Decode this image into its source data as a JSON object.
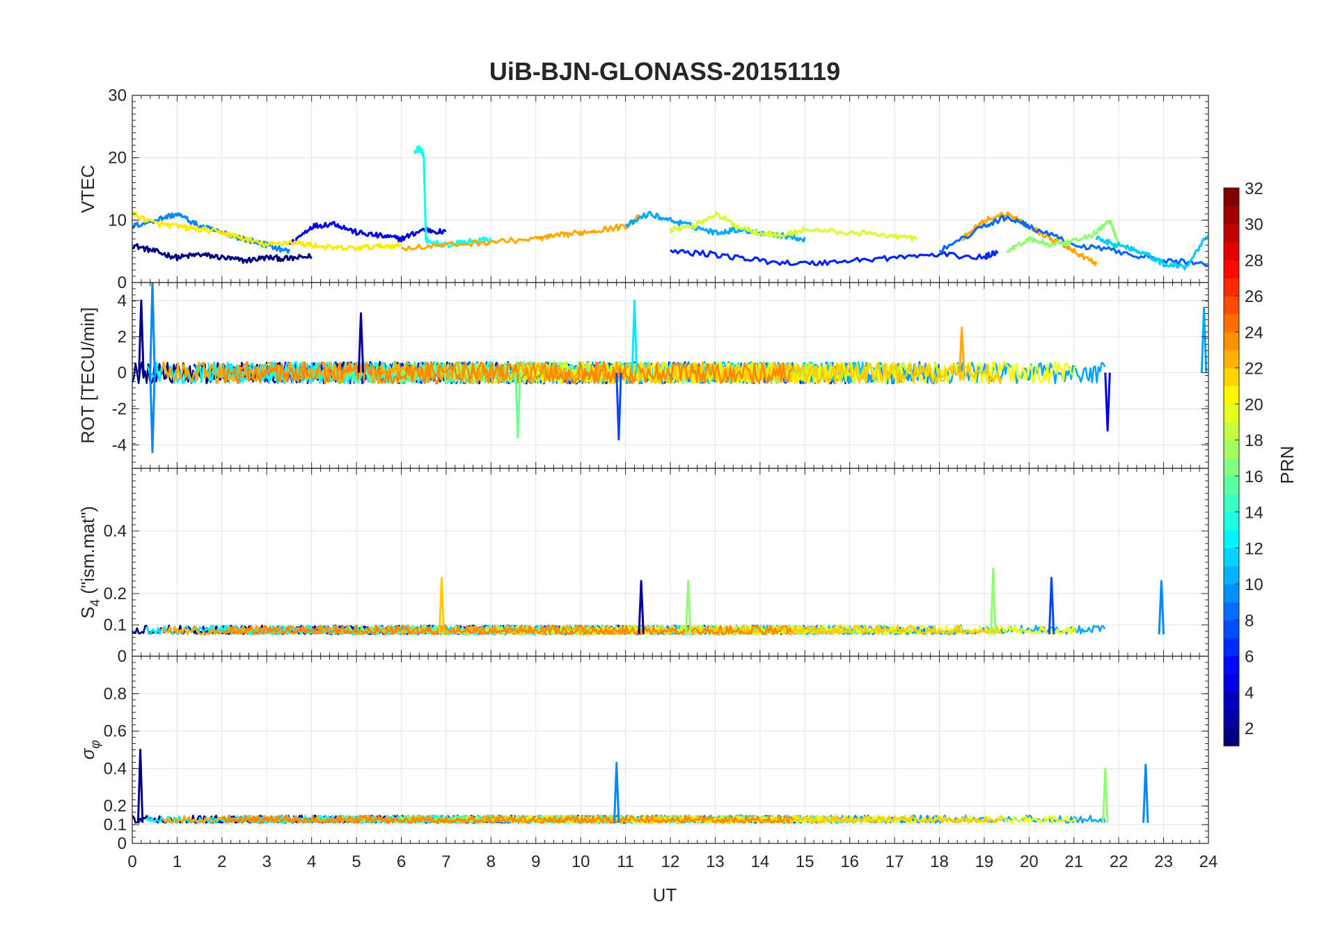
{
  "chart_data": {
    "type": "line",
    "title": "UiB-BJN-GLONASS-20151119",
    "xlabel": "UT",
    "xlim": [
      0,
      24
    ],
    "xticks": [
      "0",
      "1",
      "2",
      "3",
      "4",
      "5",
      "6",
      "7",
      "8",
      "9",
      "10",
      "11",
      "12",
      "13",
      "14",
      "15",
      "16",
      "17",
      "18",
      "19",
      "20",
      "21",
      "22",
      "23",
      "24"
    ],
    "grid": true,
    "colorbar": {
      "label": "PRN",
      "colormap": "jet",
      "range": [
        1,
        32
      ],
      "ticks": [
        "2",
        "4",
        "6",
        "8",
        "10",
        "12",
        "14",
        "16",
        "18",
        "20",
        "22",
        "24",
        "26",
        "28",
        "30",
        "32"
      ]
    },
    "panels": [
      {
        "ylabel": "VTEC",
        "ylim": [
          0,
          30
        ],
        "yticks": [
          "0",
          "10",
          "20",
          "30"
        ],
        "series_summary": "VTEC mostly between 2 and 12 TECU; one satellite shows a short spike to ~21.5 TECU near 6.4 UT",
        "series": [
          {
            "prn": 1,
            "x": [
              0,
              0.5,
              1,
              1.5,
              2,
              2.5,
              3,
              3.5,
              4
            ],
            "y": [
              6,
              5,
              4,
              4.5,
              4,
              3.5,
              4,
              3.8,
              4.2
            ]
          },
          {
            "prn": 4,
            "x": [
              3.5,
              4,
              4.5,
              5,
              5.5,
              6,
              6.5,
              7
            ],
            "y": [
              6,
              9,
              9.5,
              8,
              7.5,
              7,
              8.5,
              8
            ]
          },
          {
            "prn": 9,
            "x": [
              0,
              0.5,
              1,
              1.5,
              2,
              2.5,
              3,
              3.5
            ],
            "y": [
              9,
              10,
              11,
              9,
              8,
              7,
              6,
              5
            ]
          },
          {
            "prn": 13,
            "x": [
              6.3,
              6.4,
              6.5,
              6.55,
              6.6,
              7,
              7.5,
              8
            ],
            "y": [
              21,
              21.5,
              20.5,
              7,
              6.5,
              6,
              6.5,
              7
            ]
          },
          {
            "prn": 21,
            "x": [
              0,
              0.5,
              1,
              1.5,
              2,
              2.5,
              3,
              3.5,
              4,
              4.5,
              5,
              5.5,
              6
            ],
            "y": [
              11,
              9.5,
              9,
              8.5,
              8,
              7,
              6,
              6.5,
              6,
              5.5,
              5.5,
              5.8,
              6
            ]
          },
          {
            "prn": 23,
            "x": [
              6,
              7,
              8,
              9,
              9.5,
              10,
              10.5,
              11,
              11.3
            ],
            "y": [
              5.5,
              6,
              6.5,
              7,
              7.5,
              8,
              8.5,
              9,
              10.5
            ]
          },
          {
            "prn": 10,
            "x": [
              11,
              11.5,
              12,
              12.5,
              13,
              13.5,
              14,
              14.5,
              15
            ],
            "y": [
              9,
              11,
              10,
              9,
              8,
              8.5,
              8,
              7.5,
              7
            ]
          },
          {
            "prn": 19,
            "x": [
              12,
              12.5,
              13,
              13.5,
              14,
              14.5,
              15,
              16,
              17,
              17.5
            ],
            "y": [
              8.5,
              9,
              11,
              9,
              8,
              7.5,
              8.5,
              8,
              7.5,
              7
            ]
          },
          {
            "prn": 6,
            "x": [
              12,
              13,
              14,
              15,
              16,
              17,
              18,
              19,
              19.3
            ],
            "y": [
              5,
              4.5,
              3.5,
              3,
              3.5,
              4,
              4.5,
              4,
              5
            ]
          },
          {
            "prn": 23,
            "x": [
              18.5,
              19,
              19.5,
              20,
              20.5,
              21,
              21.5
            ],
            "y": [
              7,
              10,
              11,
              9,
              7,
              5,
              3
            ]
          },
          {
            "prn": 8,
            "x": [
              18,
              19,
              19.5,
              20,
              21,
              22,
              23,
              24
            ],
            "y": [
              5,
              9,
              10.5,
              9,
              6,
              5,
              3.5,
              3
            ]
          },
          {
            "prn": 17,
            "x": [
              19.5,
              20,
              20.5,
              21,
              21.5,
              21.8,
              22
            ],
            "y": [
              5,
              7,
              6,
              6.5,
              8,
              10,
              6
            ]
          },
          {
            "prn": 11,
            "x": [
              21.5,
              22,
              22.5,
              23,
              23.5,
              24
            ],
            "y": [
              7,
              6,
              5,
              3,
              2.5,
              8
            ]
          }
        ]
      },
      {
        "ylabel": "ROT [TECU/min]",
        "ylim": [
          -5.3,
          5
        ],
        "yticks": [
          "-4",
          "-2",
          "0",
          "2",
          "4"
        ],
        "series_summary": "ROT fluctuates around 0 within about ±1 TECU/min, with excursions to about ±4 TECU/min near 0-1 UT and 10.5-12 UT",
        "spikes": [
          {
            "prn": 9,
            "x": 0.45,
            "y": 5
          },
          {
            "prn": 9,
            "x": 0.45,
            "y": -4.4
          },
          {
            "prn": 1,
            "x": 0.2,
            "y": 4
          },
          {
            "prn": 2,
            "x": 5.1,
            "y": 3.3
          },
          {
            "prn": 16,
            "x": 8.6,
            "y": -3.6
          },
          {
            "prn": 7,
            "x": 10.85,
            "y": -3.7
          },
          {
            "prn": 12,
            "x": 11.2,
            "y": 4
          },
          {
            "prn": 23,
            "x": 18.5,
            "y": 2.5
          },
          {
            "prn": 4,
            "x": 21.75,
            "y": -3.2
          },
          {
            "prn": 10,
            "x": 23.9,
            "y": 3.6
          }
        ]
      },
      {
        "ylabel": "S4 (\"ism.mat\")",
        "ylabel_main": "S",
        "ylabel_sub": "4",
        "ylabel_rest": " (\"ism.mat\")",
        "ylim": [
          0,
          0.6
        ],
        "yticks": [
          "0",
          "0.1",
          "0.2",
          "0.4"
        ],
        "series_summary": "S4 mostly 0.05-0.12 with peaks up to ~0.28",
        "spikes": [
          {
            "prn": 22,
            "x": 6.9,
            "y": 0.25
          },
          {
            "prn": 2,
            "x": 11.35,
            "y": 0.24
          },
          {
            "prn": 17,
            "x": 12.4,
            "y": 0.24
          },
          {
            "prn": 17,
            "x": 19.2,
            "y": 0.28
          },
          {
            "prn": 7,
            "x": 20.5,
            "y": 0.25
          },
          {
            "prn": 9,
            "x": 22.95,
            "y": 0.24
          }
        ]
      },
      {
        "ylabel": "σφ",
        "ylabel_main": "σ",
        "ylabel_sub": "φ",
        "ylim": [
          0,
          1
        ],
        "yticks": [
          "0",
          "0.1",
          "0.2",
          "0.4",
          "0.6",
          "0.8"
        ],
        "series_summary": "Phase scintillation index mostly 0.05-0.2 with peaks near 0.5 at 0.2 UT and ~0.42 near 10.8 and 22.6 UT",
        "spikes": [
          {
            "prn": 1,
            "x": 0.18,
            "y": 0.5
          },
          {
            "prn": 9,
            "x": 10.8,
            "y": 0.43
          },
          {
            "prn": 17,
            "x": 21.7,
            "y": 0.4
          },
          {
            "prn": 9,
            "x": 22.6,
            "y": 0.42
          }
        ]
      }
    ]
  }
}
